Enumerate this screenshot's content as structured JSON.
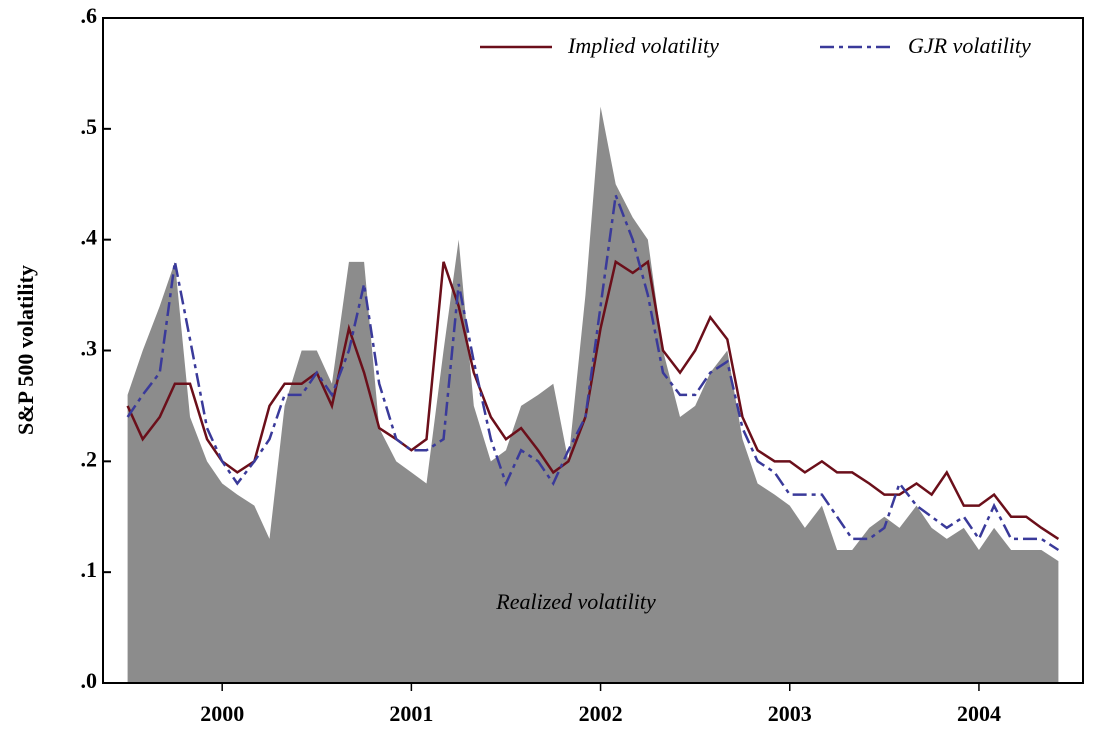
{
  "chart_data": {
    "type": "line",
    "y_label": "S&P 500 volatility",
    "annotation": "Realized volatility",
    "legend": "upper right",
    "x": [
      2000,
      2000.08,
      2000.17,
      2000.25,
      2000.33,
      2000.42,
      2000.5,
      2000.58,
      2000.67,
      2000.75,
      2000.83,
      2000.92,
      2001,
      2001.08,
      2001.17,
      2001.25,
      2001.33,
      2001.42,
      2001.5,
      2001.58,
      2001.67,
      2001.75,
      2001.83,
      2001.92,
      2002,
      2002.08,
      2002.17,
      2002.25,
      2002.33,
      2002.42,
      2002.5,
      2002.58,
      2002.67,
      2002.75,
      2002.83,
      2002.92,
      2003,
      2003.08,
      2003.17,
      2003.25,
      2003.33,
      2003.42,
      2003.5,
      2003.58,
      2003.67,
      2003.75,
      2003.83,
      2003.92,
      2004,
      2004.08,
      2004.17,
      2004.25,
      2004.33,
      2004.42,
      2004.5,
      2004.58,
      2004.67,
      2004.75,
      2004.83,
      2004.92
    ],
    "series": [
      {
        "name": "Realized volatility",
        "kind": "area",
        "color": "#8c8c8c",
        "values": [
          0.26,
          0.3,
          0.34,
          0.38,
          0.24,
          0.2,
          0.18,
          0.17,
          0.16,
          0.13,
          0.25,
          0.3,
          0.3,
          0.27,
          0.38,
          0.38,
          0.23,
          0.2,
          0.19,
          0.18,
          0.3,
          0.4,
          0.25,
          0.2,
          0.21,
          0.25,
          0.26,
          0.27,
          0.2,
          0.35,
          0.52,
          0.45,
          0.42,
          0.4,
          0.3,
          0.24,
          0.25,
          0.28,
          0.3,
          0.22,
          0.18,
          0.17,
          0.16,
          0.14,
          0.16,
          0.12,
          0.12,
          0.14,
          0.15,
          0.14,
          0.16,
          0.14,
          0.13,
          0.14,
          0.12,
          0.14,
          0.12,
          0.12,
          0.12,
          0.11
        ]
      },
      {
        "name": "Implied volatility",
        "kind": "line",
        "line_style": "solid",
        "color": "#6b0f1a",
        "values": [
          0.25,
          0.22,
          0.24,
          0.27,
          0.27,
          0.22,
          0.2,
          0.19,
          0.2,
          0.25,
          0.27,
          0.27,
          0.28,
          0.25,
          0.32,
          0.28,
          0.23,
          0.22,
          0.21,
          0.22,
          0.38,
          0.34,
          0.28,
          0.24,
          0.22,
          0.23,
          0.21,
          0.19,
          0.2,
          0.24,
          0.32,
          0.38,
          0.37,
          0.38,
          0.3,
          0.28,
          0.3,
          0.33,
          0.31,
          0.24,
          0.21,
          0.2,
          0.2,
          0.19,
          0.2,
          0.19,
          0.19,
          0.18,
          0.17,
          0.17,
          0.18,
          0.17,
          0.19,
          0.16,
          0.16,
          0.17,
          0.15,
          0.15,
          0.14,
          0.13
        ]
      },
      {
        "name": "GJR volatility",
        "kind": "line",
        "line_style": "dashed",
        "color": "#3a3a9a",
        "values": [
          0.24,
          0.26,
          0.28,
          0.38,
          0.31,
          0.23,
          0.2,
          0.18,
          0.2,
          0.22,
          0.26,
          0.26,
          0.28,
          0.26,
          0.3,
          0.36,
          0.27,
          0.22,
          0.21,
          0.21,
          0.22,
          0.36,
          0.29,
          0.22,
          0.18,
          0.21,
          0.2,
          0.18,
          0.21,
          0.24,
          0.34,
          0.44,
          0.4,
          0.35,
          0.28,
          0.26,
          0.26,
          0.28,
          0.29,
          0.23,
          0.2,
          0.19,
          0.17,
          0.17,
          0.17,
          0.15,
          0.13,
          0.13,
          0.14,
          0.18,
          0.16,
          0.15,
          0.14,
          0.15,
          0.13,
          0.16,
          0.13,
          0.13,
          0.13,
          0.12
        ]
      }
    ],
    "xlim": [
      1999.87,
      2005.05
    ],
    "xticks": [
      {
        "value": 2000.5,
        "label": "2000"
      },
      {
        "value": 2001.5,
        "label": "2001"
      },
      {
        "value": 2002.5,
        "label": "2002"
      },
      {
        "value": 2003.5,
        "label": "2003"
      },
      {
        "value": 2004.5,
        "label": "2004"
      }
    ],
    "ylim": [
      0,
      0.6
    ],
    "yticks": [
      {
        "value": 0,
        "label": ".0"
      },
      {
        "value": 0.1,
        "label": ".1"
      },
      {
        "value": 0.2,
        "label": ".2"
      },
      {
        "value": 0.3,
        "label": ".3"
      },
      {
        "value": 0.4,
        "label": ".4"
      },
      {
        "value": 0.5,
        "label": ".5"
      },
      {
        "value": 0.6,
        "label": ".6"
      }
    ]
  }
}
